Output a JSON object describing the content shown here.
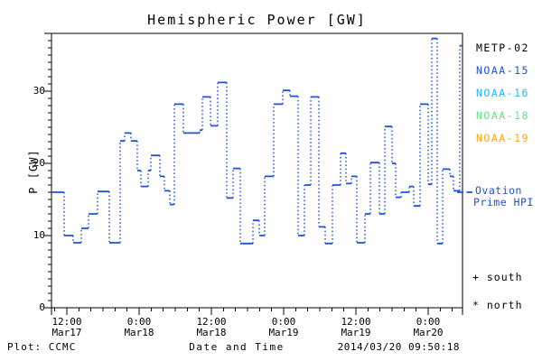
{
  "chart_data": {
    "type": "step-line",
    "title": "Hemispheric Power [GW]",
    "xlabel": "Date and Time",
    "ylabel": "P [GW]",
    "ylim": [
      0,
      38
    ],
    "yticks": [
      0,
      10,
      20,
      30
    ],
    "y_minor_step_gw": 1,
    "x_minor_step_hours": 2,
    "grid": false,
    "time_axis": {
      "hours_origin": "Mar17 00:00",
      "start_hours": 9.45,
      "end_hours": 77.7,
      "major_ticks": [
        {
          "hours": 12,
          "time": "12:00",
          "date": "Mar17"
        },
        {
          "hours": 24,
          "time": "0:00",
          "date": "Mar18"
        },
        {
          "hours": 36,
          "time": "12:00",
          "date": "Mar18"
        },
        {
          "hours": 48,
          "time": "0:00",
          "date": "Mar19"
        },
        {
          "hours": 60,
          "time": "12:00",
          "date": "Mar19"
        },
        {
          "hours": 72,
          "time": "0:00",
          "date": "Mar20"
        }
      ]
    },
    "series": [
      {
        "name": "Ovation Prime HPI",
        "color": "#1f51d8",
        "style": "step-with-dotted-risers",
        "end_hours": 77.7,
        "steps_hours_gw": [
          [
            9.45,
            16.0
          ],
          [
            11.55,
            10.0
          ],
          [
            13.05,
            9.0
          ],
          [
            14.4,
            11.0
          ],
          [
            15.6,
            13.0
          ],
          [
            17.1,
            16.1
          ],
          [
            19.05,
            9.0
          ],
          [
            20.85,
            23.1
          ],
          [
            21.6,
            24.2
          ],
          [
            22.65,
            23.1
          ],
          [
            23.7,
            19.0
          ],
          [
            24.3,
            16.8
          ],
          [
            25.5,
            19.0
          ],
          [
            25.95,
            21.1
          ],
          [
            27.45,
            18.2
          ],
          [
            28.2,
            16.2
          ],
          [
            29.1,
            14.3
          ],
          [
            29.85,
            28.2
          ],
          [
            31.35,
            24.2
          ],
          [
            34.05,
            24.6
          ],
          [
            34.5,
            29.2
          ],
          [
            35.85,
            25.2
          ],
          [
            37.05,
            31.2
          ],
          [
            38.55,
            15.2
          ],
          [
            39.6,
            19.3
          ],
          [
            40.8,
            8.9
          ],
          [
            42.9,
            12.1
          ],
          [
            43.95,
            10.0
          ],
          [
            44.85,
            18.2
          ],
          [
            46.35,
            28.2
          ],
          [
            47.85,
            30.1
          ],
          [
            49.05,
            29.3
          ],
          [
            50.4,
            10.0
          ],
          [
            51.45,
            17.0
          ],
          [
            52.5,
            29.2
          ],
          [
            53.85,
            11.2
          ],
          [
            54.9,
            8.9
          ],
          [
            56.1,
            17.0
          ],
          [
            57.45,
            21.4
          ],
          [
            58.35,
            17.2
          ],
          [
            59.25,
            18.2
          ],
          [
            60.15,
            9.0
          ],
          [
            61.5,
            13.0
          ],
          [
            62.4,
            20.1
          ],
          [
            63.9,
            13.0
          ],
          [
            64.8,
            25.1
          ],
          [
            66.0,
            20.0
          ],
          [
            66.6,
            15.3
          ],
          [
            67.5,
            16.0
          ],
          [
            68.85,
            16.8
          ],
          [
            69.6,
            14.1
          ],
          [
            70.65,
            28.2
          ],
          [
            72.0,
            17.1
          ],
          [
            72.6,
            37.3
          ],
          [
            73.5,
            8.9
          ],
          [
            74.4,
            19.2
          ],
          [
            75.6,
            18.2
          ],
          [
            76.2,
            16.2
          ],
          [
            77.25,
            36.3
          ]
        ]
      }
    ],
    "legend_satellites": [
      {
        "label": "METP-02",
        "color": "#000000"
      },
      {
        "label": "NOAA-15",
        "color": "#1f51d8"
      },
      {
        "label": "NOAA-16",
        "color": "#2ab3f0"
      },
      {
        "label": "NOAA-18",
        "color": "#67de89"
      },
      {
        "label": "NOAA-19",
        "color": "#ffa41f"
      }
    ],
    "legend_line": {
      "label_line1": "Ovation",
      "label_line2": "Prime HPI",
      "color": "#1f51d8"
    },
    "markers_legend": [
      {
        "symbol": "+",
        "label": "south"
      },
      {
        "symbol": "*",
        "label": "north"
      }
    ]
  },
  "footer": {
    "left": "Plot: CCMC",
    "center": "Date and Time",
    "right": "2014/03/20 09:50:18"
  }
}
